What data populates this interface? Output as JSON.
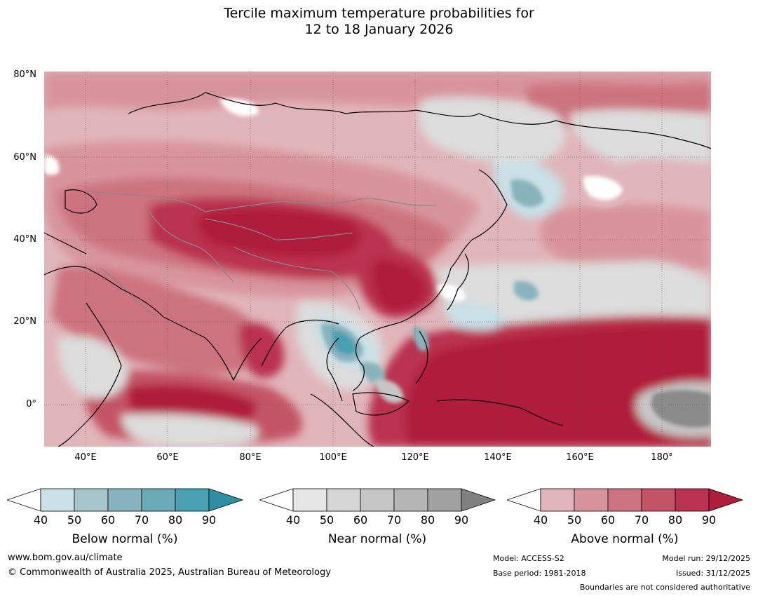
{
  "title": {
    "line1": "Tercile maximum temperature probabilities for",
    "line2": "12 to 18 January 2026"
  },
  "axes": {
    "lat_labels": [
      "80°N",
      "60°N",
      "40°N",
      "20°N",
      "0°"
    ],
    "lon_labels": [
      "40°E",
      "60°E",
      "80°E",
      "100°E",
      "120°E",
      "140°E",
      "160°E",
      "180°"
    ],
    "lon_range": [
      30,
      192
    ],
    "lat_range": [
      -10,
      81
    ]
  },
  "colorbars": [
    {
      "label": "Below normal (%)",
      "ticks": [
        "40",
        "50",
        "60",
        "70",
        "80",
        "90"
      ],
      "under_color": "#ffffff",
      "colors": [
        "#c8e0e6",
        "#a7c6cc",
        "#88b3be",
        "#6aaab6",
        "#48a0b0"
      ],
      "over_color": "#2e8fa3"
    },
    {
      "label": "Near normal (%)",
      "ticks": [
        "40",
        "50",
        "60",
        "70",
        "80",
        "90"
      ],
      "under_color": "#ffffff",
      "colors": [
        "#e5e5e5",
        "#d5d5d5",
        "#c6c6c6",
        "#b4b4b4",
        "#a2a2a2"
      ],
      "over_color": "#808080"
    },
    {
      "label": "Above normal (%)",
      "ticks": [
        "40",
        "50",
        "60",
        "70",
        "80",
        "90"
      ],
      "under_color": "#ffffff",
      "colors": [
        "#e0b5ba",
        "#d8949c",
        "#cd737f",
        "#c45466",
        "#ba3350"
      ],
      "over_color": "#b01d3a"
    }
  ],
  "map_colors": {
    "above_light": "#e0b5ba",
    "above_med": "#d8949c",
    "above_mid": "#cd737f",
    "above_high": "#c45466",
    "above_vhigh": "#ba3350",
    "above_max": "#b01d3a",
    "near_light": "#dcdcdc",
    "near_mid": "#c6c6c6",
    "near_dark": "#8a8a8a",
    "below_light": "#c8e0e6",
    "below_mid": "#88b3be",
    "below_dark": "#48a0b0",
    "coast": "#000000",
    "border": "#888888"
  },
  "footer": {
    "website": "www.bom.gov.au/climate",
    "copyright": "© Commonwealth of Australia 2025, Australian Bureau of Meteorology",
    "model": "Model: ACCESS-S2",
    "base_period": "Base period: 1981-2018",
    "model_run": "Model run: 29/12/2025",
    "issued": "Issued: 31/12/2025",
    "boundaries": "Boundaries are not considered authoritative"
  }
}
